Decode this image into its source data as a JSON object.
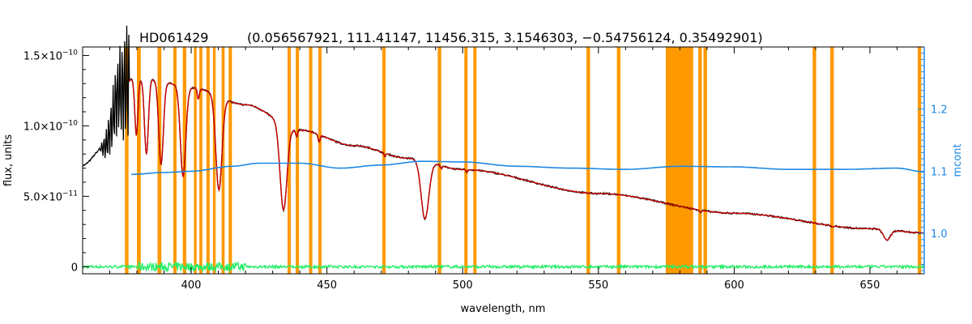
{
  "chart_data": {
    "type": "line",
    "title": "HD061429",
    "subtitle": "(0.056567921, 111.41147, 11456.315, 3.1546303, −0.54756124, 0.35492901)",
    "xlabel": "wavelength, nm",
    "ylabel": "flux, units",
    "ylabel_right": "mcont",
    "xlim": [
      360,
      670
    ],
    "ylim": [
      -5e-12,
      1.56e-10
    ],
    "ylim_right": [
      0.935,
      1.3
    ],
    "x_ticks": [
      "400",
      "450",
      "500",
      "550",
      "600",
      "650"
    ],
    "y_ticks": [
      {
        "base": "0",
        "exp": ""
      },
      {
        "base": "5.0×10",
        "exp": "−11"
      },
      {
        "base": "1.0×10",
        "exp": "−10"
      },
      {
        "base": "1.5×10",
        "exp": "−10"
      }
    ],
    "y_ticks_right": [
      "1.0",
      "1.1",
      "1.2"
    ],
    "colors": {
      "observed": "#000000",
      "model": "#cc0000",
      "continuum": "#1e88e5",
      "residual": "#22ee66",
      "mask": "#ff9900",
      "right_axis": "#1e88e5"
    },
    "mask_bands_nm": [
      [
        375.6,
        376.9
      ],
      [
        380.0,
        381.4
      ],
      [
        387.6,
        389.0
      ],
      [
        393.4,
        394.6
      ],
      [
        396.9,
        398.2
      ],
      [
        401.0,
        402.0
      ],
      [
        403.0,
        404.1
      ],
      [
        405.6,
        406.8
      ],
      [
        408.0,
        409.0
      ],
      [
        411.2,
        412.3
      ],
      [
        413.8,
        415.0
      ],
      [
        435.5,
        436.7
      ],
      [
        438.5,
        439.7
      ],
      [
        443.4,
        444.6
      ],
      [
        446.8,
        448.0
      ],
      [
        470.4,
        471.6
      ],
      [
        490.8,
        492.1
      ],
      [
        500.6,
        501.8
      ],
      [
        503.9,
        505.1
      ],
      [
        545.6,
        546.9
      ],
      [
        556.8,
        558.1
      ],
      [
        574.8,
        584.9
      ],
      [
        586.8,
        588.1
      ],
      [
        588.7,
        590.0
      ],
      [
        628.9,
        630.2
      ],
      [
        635.4,
        636.7
      ],
      [
        667.6,
        668.9
      ]
    ],
    "absorption_lines_nm": [
      {
        "x": 388.9,
        "depth": 0.45,
        "width": 1.2
      },
      {
        "x": 397.0,
        "depth": 0.5,
        "width": 1.4
      },
      {
        "x": 410.2,
        "depth": 0.55,
        "width": 1.6
      },
      {
        "x": 434.0,
        "depth": 0.6,
        "width": 1.8
      },
      {
        "x": 486.1,
        "depth": 0.55,
        "width": 2.0
      },
      {
        "x": 656.3,
        "depth": 0.28,
        "width": 1.8
      },
      {
        "x": 383.5,
        "depth": 0.4,
        "width": 1.0
      },
      {
        "x": 379.8,
        "depth": 0.3,
        "width": 0.8
      },
      {
        "x": 447.1,
        "depth": 0.06,
        "width": 0.5
      },
      {
        "x": 402.6,
        "depth": 0.06,
        "width": 0.5
      },
      {
        "x": 438.8,
        "depth": 0.05,
        "width": 0.5
      },
      {
        "x": 471.3,
        "depth": 0.03,
        "width": 0.4
      },
      {
        "x": 492.2,
        "depth": 0.03,
        "width": 0.4
      },
      {
        "x": 501.6,
        "depth": 0.03,
        "width": 0.4
      },
      {
        "x": 587.6,
        "depth": 0.04,
        "width": 0.5
      },
      {
        "x": 636.3,
        "depth": 0.03,
        "width": 0.5
      }
    ],
    "continuum_flux_points": [
      [
        360,
        7.2e-11
      ],
      [
        368,
        8.5e-11
      ],
      [
        374,
        1.25e-10
      ],
      [
        378,
        1.33e-10
      ],
      [
        385,
        1.33e-10
      ],
      [
        400,
        1.27e-10
      ],
      [
        420,
        1.15e-10
      ],
      [
        440,
        9.7e-11
      ],
      [
        460,
        8.6e-11
      ],
      [
        480,
        7.7e-11
      ],
      [
        500,
        6.9e-11
      ],
      [
        550,
        5.2e-11
      ],
      [
        600,
        3.8e-11
      ],
      [
        650,
        2.7e-11
      ],
      [
        670,
        2.4e-11
      ]
    ],
    "mcont_points": [
      [
        378,
        1.095
      ],
      [
        390,
        1.098
      ],
      [
        400,
        1.1
      ],
      [
        415,
        1.108
      ],
      [
        425,
        1.113
      ],
      [
        440,
        1.113
      ],
      [
        455,
        1.105
      ],
      [
        470,
        1.11
      ],
      [
        485,
        1.116
      ],
      [
        500,
        1.115
      ],
      [
        520,
        1.108
      ],
      [
        540,
        1.105
      ],
      [
        560,
        1.103
      ],
      [
        580,
        1.108
      ],
      [
        600,
        1.107
      ],
      [
        620,
        1.103
      ],
      [
        640,
        1.103
      ],
      [
        660,
        1.105
      ],
      [
        670,
        1.099
      ]
    ],
    "grid": false,
    "legend": "none"
  }
}
